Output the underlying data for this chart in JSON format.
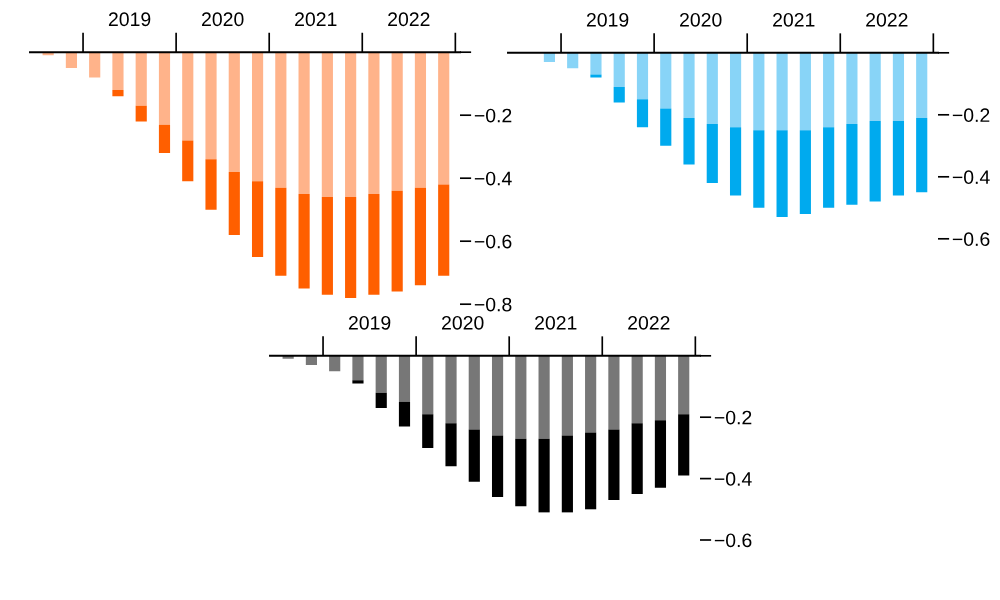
{
  "chart_data": [
    {
      "type": "bar",
      "stacked": true,
      "x": [
        2018.625,
        2018.875,
        2019.125,
        2019.375,
        2019.625,
        2019.875,
        2020.125,
        2020.375,
        2020.625,
        2020.875,
        2021.125,
        2021.375,
        2021.625,
        2021.875,
        2022.125,
        2022.375,
        2022.625,
        2022.875
      ],
      "series": [
        {
          "color": "#ffb38a",
          "values": [
            -0.01,
            -0.05,
            -0.08,
            -0.12,
            -0.17,
            -0.23,
            -0.28,
            -0.34,
            -0.38,
            -0.41,
            -0.43,
            -0.45,
            -0.46,
            -0.46,
            -0.45,
            -0.44,
            -0.43,
            -0.42
          ]
        },
        {
          "color": "#ff5f00",
          "values": [
            null,
            null,
            null,
            -0.02,
            -0.05,
            -0.09,
            -0.13,
            -0.16,
            -0.2,
            -0.24,
            -0.28,
            -0.3,
            -0.31,
            -0.32,
            -0.32,
            -0.32,
            -0.31,
            -0.29
          ]
        }
      ],
      "xlim": [
        2018.43,
        2023.05
      ],
      "xticks": [
        {
          "value": 2019,
          "label": null
        },
        {
          "value": 2019.5,
          "label": "2019"
        },
        {
          "value": 2020,
          "label": null
        },
        {
          "value": 2020.5,
          "label": "2020"
        },
        {
          "value": 2021,
          "label": null
        },
        {
          "value": 2021.5,
          "label": "2021"
        },
        {
          "value": 2022,
          "label": null
        },
        {
          "value": 2022.5,
          "label": "2022"
        },
        {
          "value": 2023,
          "label": null
        }
      ],
      "ylim": [
        -0.8,
        0
      ],
      "yticks": [
        {
          "value": 0,
          "label": null
        },
        {
          "value": -0.2,
          "label": "−0.2"
        },
        {
          "value": -0.4,
          "label": "−0.4"
        },
        {
          "value": -0.6,
          "label": "−0.6"
        },
        {
          "value": -0.8,
          "label": "−0.8"
        }
      ],
      "grid": false,
      "legend": false
    },
    {
      "type": "bar",
      "stacked": true,
      "x": [
        2018.875,
        2019.125,
        2019.375,
        2019.625,
        2019.875,
        2020.125,
        2020.375,
        2020.625,
        2020.875,
        2021.125,
        2021.375,
        2021.625,
        2021.875,
        2022.125,
        2022.375,
        2022.625,
        2022.875
      ],
      "series": [
        {
          "color": "#88d4f7",
          "values": [
            -0.03,
            -0.05,
            -0.07,
            -0.11,
            -0.15,
            -0.18,
            -0.21,
            -0.23,
            -0.24,
            -0.25,
            -0.25,
            -0.25,
            -0.24,
            -0.23,
            -0.22,
            -0.22,
            -0.21
          ]
        },
        {
          "color": "#00aaee",
          "values": [
            null,
            null,
            -0.01,
            -0.05,
            -0.09,
            -0.12,
            -0.15,
            -0.19,
            -0.22,
            -0.25,
            -0.28,
            -0.27,
            -0.26,
            -0.26,
            -0.26,
            -0.24,
            -0.24
          ]
        }
      ],
      "xlim": [
        2018.43,
        2023.05
      ],
      "xticks": [
        {
          "value": 2019,
          "label": null
        },
        {
          "value": 2019.5,
          "label": "2019"
        },
        {
          "value": 2020,
          "label": null
        },
        {
          "value": 2020.5,
          "label": "2020"
        },
        {
          "value": 2021,
          "label": null
        },
        {
          "value": 2021.5,
          "label": "2021"
        },
        {
          "value": 2022,
          "label": null
        },
        {
          "value": 2022.5,
          "label": "2022"
        },
        {
          "value": 2023,
          "label": null
        }
      ],
      "ylim": [
        -0.6,
        0
      ],
      "yticks": [
        {
          "value": 0,
          "label": null
        },
        {
          "value": -0.2,
          "label": "−0.2"
        },
        {
          "value": -0.4,
          "label": "−0.4"
        },
        {
          "value": -0.6,
          "label": "−0.6"
        }
      ],
      "grid": false,
      "legend": false
    },
    {
      "type": "bar",
      "stacked": true,
      "x": [
        2018.625,
        2018.875,
        2019.125,
        2019.375,
        2019.625,
        2019.875,
        2020.125,
        2020.375,
        2020.625,
        2020.875,
        2021.125,
        2021.375,
        2021.625,
        2021.875,
        2022.125,
        2022.375,
        2022.625,
        2022.875
      ],
      "series": [
        {
          "color": "#777777",
          "values": [
            -0.01,
            -0.03,
            -0.05,
            -0.08,
            -0.12,
            -0.15,
            -0.19,
            -0.22,
            -0.24,
            -0.26,
            -0.27,
            -0.27,
            -0.26,
            -0.25,
            -0.24,
            -0.22,
            -0.21,
            -0.19
          ]
        },
        {
          "color": "#000000",
          "values": [
            null,
            null,
            null,
            -0.01,
            -0.05,
            -0.08,
            -0.11,
            -0.14,
            -0.17,
            -0.2,
            -0.22,
            -0.24,
            -0.25,
            -0.25,
            -0.23,
            -0.23,
            -0.22,
            -0.2
          ]
        }
      ],
      "xlim": [
        2018.43,
        2023.05
      ],
      "xticks": [
        {
          "value": 2019,
          "label": null
        },
        {
          "value": 2019.5,
          "label": "2019"
        },
        {
          "value": 2020,
          "label": null
        },
        {
          "value": 2020.5,
          "label": "2020"
        },
        {
          "value": 2021,
          "label": null
        },
        {
          "value": 2021.5,
          "label": "2021"
        },
        {
          "value": 2022,
          "label": null
        },
        {
          "value": 2022.5,
          "label": "2022"
        },
        {
          "value": 2023,
          "label": null
        }
      ],
      "ylim": [
        -0.6,
        0
      ],
      "yticks": [
        {
          "value": 0,
          "label": null
        },
        {
          "value": -0.2,
          "label": "−0.2"
        },
        {
          "value": -0.4,
          "label": "−0.4"
        },
        {
          "value": -0.6,
          "label": "−0.6"
        }
      ],
      "grid": false,
      "legend": false
    }
  ]
}
